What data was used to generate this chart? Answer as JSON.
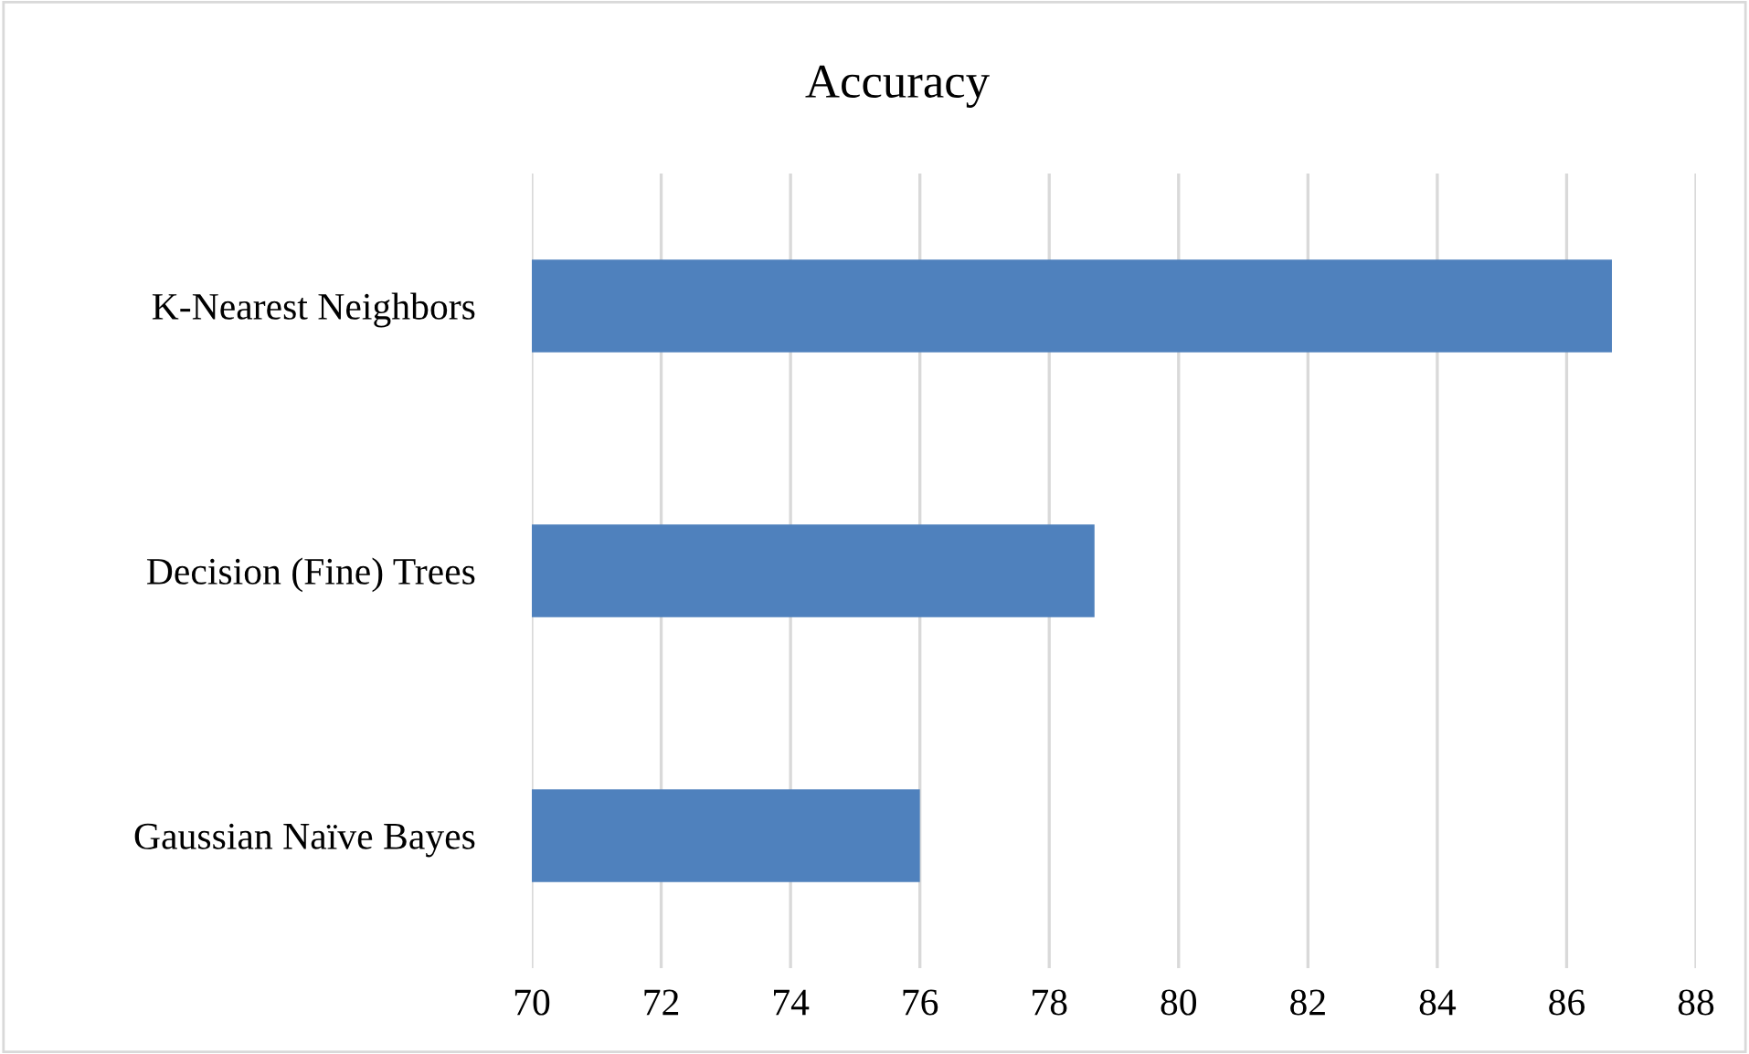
{
  "chart_data": {
    "type": "bar",
    "orientation": "horizontal",
    "title": "Accuracy",
    "categories": [
      "K-Nearest Neighbors",
      "Decision (Fine) Trees",
      "Gaussian Naïve Bayes"
    ],
    "values": [
      86.7,
      78.7,
      76.0
    ],
    "color": "#4f81bd",
    "xlim": [
      70,
      88
    ],
    "xticks": [
      70,
      72,
      74,
      76,
      78,
      80,
      82,
      84,
      86,
      88
    ],
    "grid": "x",
    "legend": false
  }
}
